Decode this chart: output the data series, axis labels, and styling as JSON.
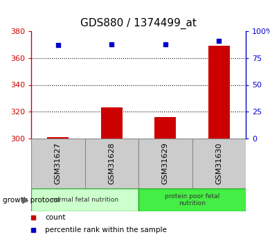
{
  "title": "GDS880 / 1374499_at",
  "samples": [
    "GSM31627",
    "GSM31628",
    "GSM31629",
    "GSM31630"
  ],
  "count_values": [
    301,
    323,
    316,
    369
  ],
  "count_base": 300,
  "percentile_values": [
    87,
    88,
    88,
    91
  ],
  "groups": [
    {
      "label": "normal fetal nutrition",
      "samples": [
        0,
        1
      ],
      "color": "#ccffcc",
      "edge": "#33aa33"
    },
    {
      "label": "protein poor fetal\nnutrition",
      "samples": [
        2,
        3
      ],
      "color": "#44ee44",
      "edge": "#22aa22"
    }
  ],
  "ylim_left": [
    300,
    380
  ],
  "ylim_right": [
    0,
    100
  ],
  "yticks_left": [
    300,
    320,
    340,
    360,
    380
  ],
  "yticks_right": [
    0,
    25,
    50,
    75,
    100
  ],
  "ytick_labels_right": [
    "0",
    "25",
    "50",
    "75",
    "100%"
  ],
  "left_axis_color": "#cc0000",
  "right_axis_color": "#0000cc",
  "bar_color": "#cc0000",
  "dot_color": "#0000cc",
  "bg_color": "#ffffff",
  "growth_protocol_label": "growth protocol",
  "legend_items": [
    {
      "color": "#cc0000",
      "label": "count"
    },
    {
      "color": "#0000cc",
      "label": "percentile rank within the sample"
    }
  ]
}
